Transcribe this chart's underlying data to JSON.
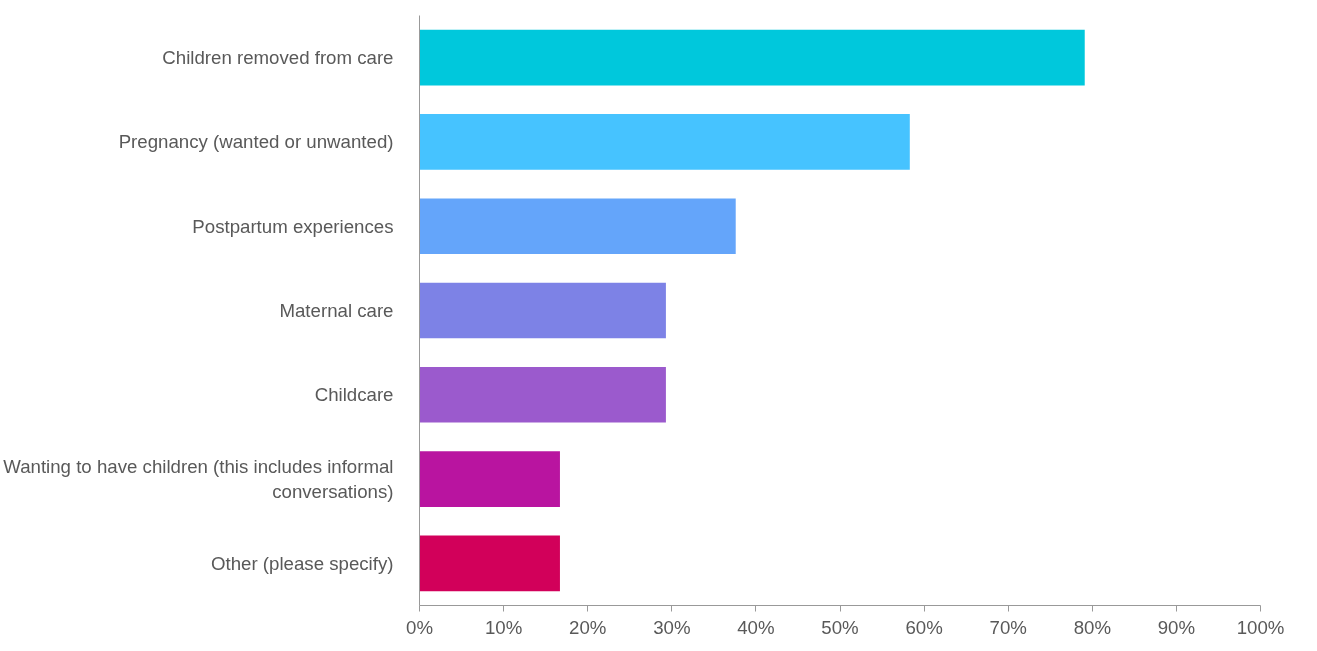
{
  "chart_data": {
    "type": "bar",
    "orientation": "horizontal",
    "categories": [
      "Children removed from care",
      "Pregnancy (wanted or unwanted)",
      "Postpartum experiences",
      "Maternal care",
      "Childcare",
      "Wanting to have children (this includes informal conversations)",
      "Other (please specify)"
    ],
    "values": [
      79.1,
      58.3,
      37.6,
      29.3,
      29.3,
      16.7,
      16.7
    ],
    "colors": [
      "#00c8dc",
      "#46c3ff",
      "#64a5fa",
      "#7d82e6",
      "#9b5acd",
      "#b914a0",
      "#d2005a"
    ],
    "xlim": [
      0,
      100
    ],
    "xticks": [
      {
        "value": 0,
        "label": "0%"
      },
      {
        "value": 10,
        "label": "10%"
      },
      {
        "value": 20,
        "label": "20%"
      },
      {
        "value": 30,
        "label": "30%"
      },
      {
        "value": 40,
        "label": "40%"
      },
      {
        "value": 50,
        "label": "50%"
      },
      {
        "value": 60,
        "label": "60%"
      },
      {
        "value": 70,
        "label": "70%"
      },
      {
        "value": 80,
        "label": "80%"
      },
      {
        "value": 90,
        "label": "90%"
      },
      {
        "value": 100,
        "label": "100%"
      }
    ],
    "grid": false
  }
}
